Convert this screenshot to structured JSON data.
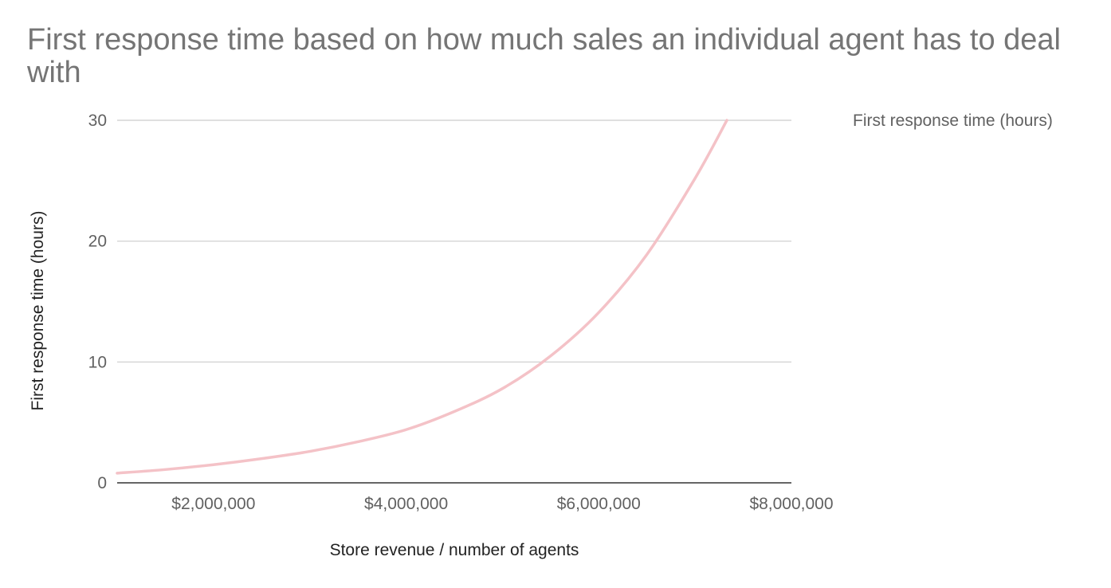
{
  "chart_data": {
    "type": "line",
    "title": "First response time based on how much sales an individual agent has to deal with",
    "xlabel": "Store revenue / number of agents",
    "ylabel": "First response time (hours)",
    "xlim": [
      1000000,
      8000000
    ],
    "ylim": [
      0,
      30
    ],
    "x_ticks": [
      2000000,
      4000000,
      6000000,
      8000000
    ],
    "x_tick_labels": [
      "$2,000,000",
      "$4,000,000",
      "$6,000,000",
      "$8,000,000"
    ],
    "y_ticks": [
      0,
      10,
      20,
      30
    ],
    "y_tick_labels": [
      "0",
      "10",
      "20",
      "30"
    ],
    "grid": true,
    "legend_position": "right",
    "series": [
      {
        "name": "First response time (hours)",
        "color": "#f4c2c7",
        "x": [
          1000000,
          1500000,
          2000000,
          2500000,
          3000000,
          3500000,
          4000000,
          4500000,
          5000000,
          5500000,
          6000000,
          6500000,
          7000000,
          7330000
        ],
        "y": [
          0.8,
          1.1,
          1.5,
          2.0,
          2.6,
          3.4,
          4.4,
          5.9,
          7.8,
          10.5,
          14.1,
          18.9,
          25.2,
          30
        ]
      }
    ]
  }
}
